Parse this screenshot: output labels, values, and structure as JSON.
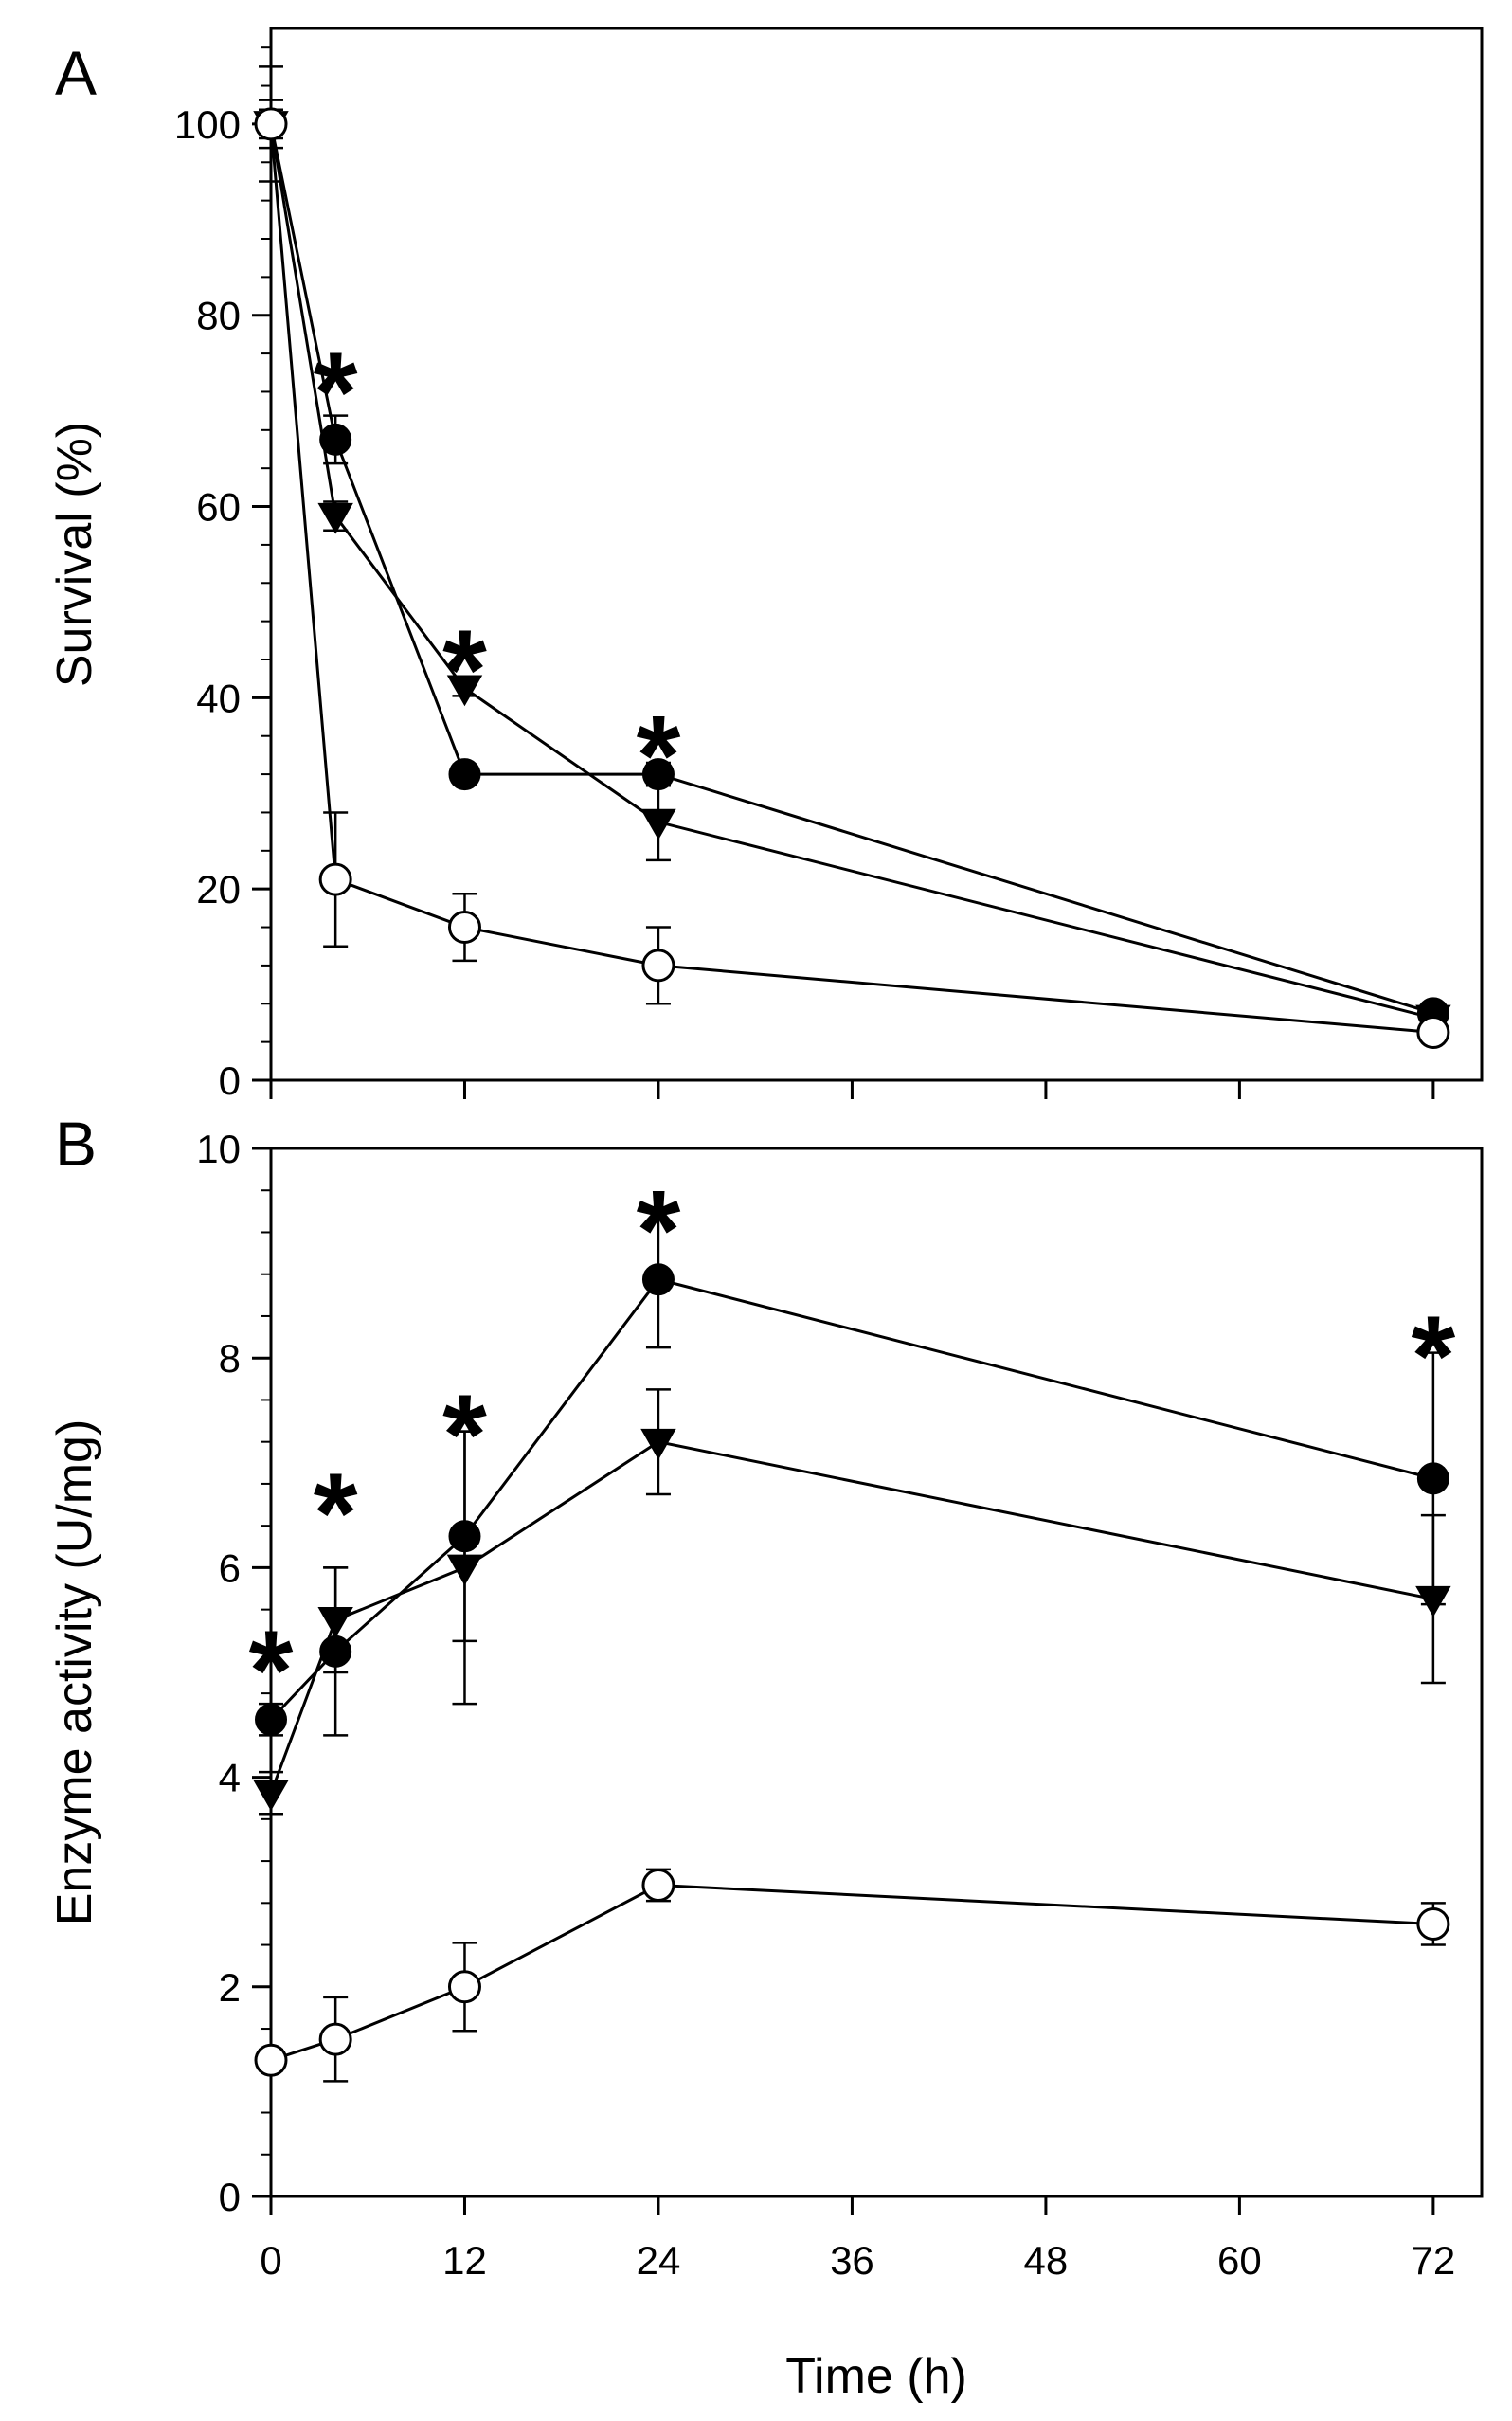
{
  "chart_data": [
    {
      "panel": "A",
      "type": "line",
      "ylabel": "Survival (%)",
      "xlabel": "",
      "xlim": [
        0,
        75
      ],
      "ylim": [
        0,
        110
      ],
      "x_ticks": [
        0,
        12,
        24,
        36,
        48,
        60,
        72
      ],
      "y_ticks": [
        0,
        20,
        40,
        60,
        80,
        100
      ],
      "y_tick_labels": [
        "0",
        "20",
        "40",
        "60",
        "80",
        "100"
      ],
      "x": [
        0,
        4,
        12,
        24,
        72
      ],
      "series": [
        {
          "name": "filled circle",
          "marker": "circle-filled",
          "values": [
            100,
            67,
            32,
            32,
            7
          ],
          "errors": [
            1.5,
            2.5,
            1,
            1.2,
            0.5
          ]
        },
        {
          "name": "filled triangle",
          "marker": "triangle-down",
          "values": [
            100,
            59,
            41,
            27,
            6.5
          ],
          "errors": [
            6,
            1.5,
            0.8,
            4,
            0.5
          ]
        },
        {
          "name": "open circle",
          "marker": "circle-open",
          "values": [
            100,
            21,
            16,
            12,
            5
          ],
          "errors": [
            2.5,
            7,
            3.5,
            4,
            0.8
          ]
        }
      ],
      "significance": [
        {
          "x": 4,
          "label": "*",
          "y": 75
        },
        {
          "x": 12,
          "label": "*",
          "y": 46
        },
        {
          "x": 24,
          "label": "*",
          "y": 37
        }
      ]
    },
    {
      "panel": "B",
      "type": "line",
      "ylabel": "Enzyme activity (U/mg)",
      "xlabel": "Time (h)",
      "xlim": [
        0,
        75
      ],
      "ylim": [
        0,
        10
      ],
      "x_ticks": [
        0,
        12,
        24,
        36,
        48,
        60,
        72
      ],
      "x_tick_labels": [
        "0",
        "12",
        "24",
        "36",
        "48",
        "60",
        "72"
      ],
      "y_ticks": [
        0,
        2,
        4,
        6,
        8,
        10
      ],
      "y_tick_labels": [
        "0",
        "2",
        "4",
        "6",
        "8",
        "10"
      ],
      "x": [
        0,
        4,
        12,
        24,
        72
      ],
      "series": [
        {
          "name": "filled circle",
          "marker": "circle-filled",
          "values": [
            4.55,
            5.2,
            6.3,
            8.75,
            6.85
          ],
          "errors": [
            0.15,
            0.8,
            1.0,
            0.65,
            1.2
          ]
        },
        {
          "name": "filled triangle",
          "marker": "triangle-down",
          "values": [
            3.85,
            5.5,
            6.0,
            7.2,
            5.7
          ],
          "errors": [
            0.2,
            0.5,
            1.3,
            0.5,
            0.8
          ]
        },
        {
          "name": "open circle",
          "marker": "circle-open",
          "values": [
            1.3,
            1.5,
            2.0,
            2.97,
            2.6
          ],
          "errors": [
            0.1,
            0.4,
            0.42,
            0.15,
            0.2
          ]
        }
      ],
      "significance": [
        {
          "x": 0,
          "label": "*",
          "y": 5.3
        },
        {
          "x": 4,
          "label": "*",
          "y": 6.8
        },
        {
          "x": 12,
          "label": "*",
          "y": 7.55
        },
        {
          "x": 24,
          "label": "*",
          "y": 9.5
        },
        {
          "x": 72,
          "label": "*",
          "y": 8.3
        }
      ]
    }
  ]
}
